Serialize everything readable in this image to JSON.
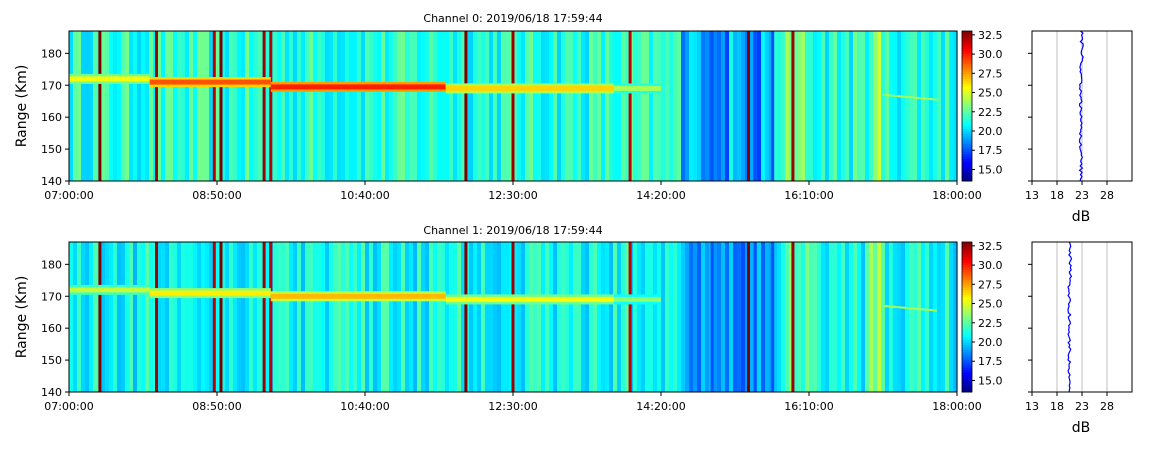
{
  "chart_data": [
    {
      "type": "heatmap",
      "title": "Channel 0: 2019/06/18 17:59:44",
      "ylabel": "Range (Km)",
      "xlabel": "",
      "x_tick_labels": [
        "07:00:00",
        "08:50:00",
        "10:40:00",
        "12:30:00",
        "14:20:00",
        "16:10:00",
        "18:00:00"
      ],
      "x_range": [
        "07:00:00",
        "18:00:00"
      ],
      "y_ticks": [
        140,
        150,
        160,
        170,
        180
      ],
      "y_range": [
        140,
        187
      ],
      "colorbar": {
        "colormap": "jet",
        "range": [
          13.5,
          33
        ],
        "ticks": [
          "15.0",
          "17.5",
          "20.0",
          "22.5",
          "25.0",
          "27.5",
          "30.0",
          "32.5"
        ]
      },
      "background_level_db": 21.5,
      "echo_band": {
        "range_km": 170,
        "segments": [
          {
            "start": "07:00:00",
            "end": "08:00:00",
            "range_km": 172,
            "level_db": 25.5
          },
          {
            "start": "08:00:00",
            "end": "09:30:00",
            "range_km": 171,
            "level_db": 29
          },
          {
            "start": "09:30:00",
            "end": "11:40:00",
            "range_km": 169.5,
            "level_db": 30
          },
          {
            "start": "11:40:00",
            "end": "13:45:00",
            "range_km": 169,
            "level_db": 26.5
          },
          {
            "start": "13:45:00",
            "end": "14:20:00",
            "range_km": 169,
            "level_db": 24
          }
        ]
      },
      "high_columns": [
        "07:23:00",
        "08:05:00",
        "08:48:00",
        "08:53:00",
        "09:25:00",
        "09:30:00",
        "11:55:00",
        "12:30:00",
        "13:57:00",
        "15:25:00",
        "15:58:00"
      ],
      "low_columns": [
        "14:58:00",
        "15:30:00",
        "15:43:00"
      ],
      "profile": {
        "xlabel": "dB",
        "x_ticks": [
          13,
          18,
          23,
          28
        ],
        "x_range": [
          13,
          33
        ],
        "y_range": [
          140,
          187
        ],
        "line_color": "#0000ff",
        "mean_db": 22.8
      }
    },
    {
      "type": "heatmap",
      "title": "Channel 1: 2019/06/18 17:59:44",
      "ylabel": "Range (Km)",
      "xlabel": "",
      "x_tick_labels": [
        "07:00:00",
        "08:50:00",
        "10:40:00",
        "12:30:00",
        "14:20:00",
        "16:10:00",
        "18:00:00"
      ],
      "x_range": [
        "07:00:00",
        "18:00:00"
      ],
      "y_ticks": [
        140,
        150,
        160,
        170,
        180
      ],
      "y_range": [
        140,
        187
      ],
      "colorbar": {
        "colormap": "jet",
        "range": [
          13.5,
          33
        ],
        "ticks": [
          "15.0",
          "17.5",
          "20.0",
          "22.5",
          "25.0",
          "27.5",
          "30.0",
          "32.5"
        ]
      },
      "background_level_db": 21,
      "echo_band": {
        "range_km": 170,
        "segments": [
          {
            "start": "07:00:00",
            "end": "08:00:00",
            "range_km": 172,
            "level_db": 24.5
          },
          {
            "start": "08:00:00",
            "end": "09:30:00",
            "range_km": 171,
            "level_db": 26
          },
          {
            "start": "09:30:00",
            "end": "11:40:00",
            "range_km": 170,
            "level_db": 27
          },
          {
            "start": "11:40:00",
            "end": "13:45:00",
            "range_km": 169,
            "level_db": 25.5
          },
          {
            "start": "13:45:00",
            "end": "14:20:00",
            "range_km": 169,
            "level_db": 23.5
          }
        ]
      },
      "high_columns": [
        "07:23:00",
        "08:05:00",
        "08:48:00",
        "08:53:00",
        "09:25:00",
        "09:30:00",
        "11:55:00",
        "12:30:00",
        "13:57:00",
        "15:25:00",
        "15:58:00"
      ],
      "low_columns": [
        "14:58:00",
        "15:30:00",
        "15:43:00"
      ],
      "profile": {
        "xlabel": "dB",
        "x_ticks": [
          13,
          18,
          23,
          28
        ],
        "x_range": [
          13,
          33
        ],
        "y_range": [
          140,
          187
        ],
        "line_color": "#0000ff",
        "mean_db": 20.5
      }
    }
  ]
}
